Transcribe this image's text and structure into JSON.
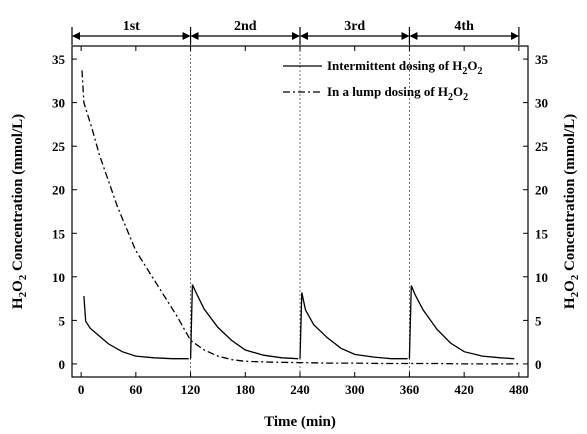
{
  "chart_data": {
    "type": "line",
    "xlabel": "Time (min)",
    "ylabel": {
      "main": "H",
      "sub1": "2",
      "mid": "O",
      "sub2": "2",
      "rest": "  Concentration (mmol/L)"
    },
    "xlim": [
      -10,
      490
    ],
    "ylim": [
      -1.5,
      36.5
    ],
    "xticks": [
      0,
      60,
      120,
      180,
      240,
      300,
      360,
      420,
      480
    ],
    "yticks": [
      0,
      5,
      10,
      15,
      20,
      25,
      30,
      35
    ],
    "stage_boundaries": [
      120,
      240,
      360
    ],
    "stages": [
      {
        "label": "1st",
        "start": -10,
        "end": 120
      },
      {
        "label": "2nd",
        "start": 120,
        "end": 240
      },
      {
        "label": "3rd",
        "start": 240,
        "end": 360
      },
      {
        "label": "4th",
        "start": 360,
        "end": 480
      }
    ],
    "legend_position": "top-right",
    "series": [
      {
        "name": {
          "pre": "Intermittent dosing of H",
          "s1": "2",
          "mid": "O",
          "s2": "2"
        },
        "style": "solid",
        "segments": [
          {
            "x": [
              3,
              5,
              10,
              20,
              30,
              45,
              60,
              80,
              100,
              118
            ],
            "y": [
              7.8,
              4.9,
              4.1,
              3.2,
              2.3,
              1.4,
              0.9,
              0.7,
              0.6,
              0.6
            ]
          },
          {
            "x": [
              120,
              122,
              126,
              135,
              150,
              165,
              180,
              200,
              220,
              238
            ],
            "y": [
              0.6,
              9.1,
              8.2,
              6.3,
              4.2,
              2.7,
              1.6,
              1.0,
              0.7,
              0.6
            ]
          },
          {
            "x": [
              240,
              242,
              246,
              255,
              270,
              285,
              300,
              320,
              340,
              358
            ],
            "y": [
              0.6,
              8.2,
              6.2,
              4.5,
              3.0,
              1.8,
              1.1,
              0.8,
              0.6,
              0.6
            ]
          },
          {
            "x": [
              360,
              362,
              366,
              375,
              390,
              405,
              420,
              440,
              460,
              475
            ],
            "y": [
              0.6,
              9.0,
              8.0,
              6.2,
              4.0,
              2.4,
              1.4,
              0.9,
              0.7,
              0.6
            ]
          }
        ]
      },
      {
        "name": {
          "pre": "In a lump dosing of  H",
          "s1": "2",
          "mid": "O",
          "s2": "2"
        },
        "style": "dashdot",
        "segments": [
          {
            "x": [
              1,
              3,
              6,
              12,
              20,
              30,
              40,
              50,
              60,
              75,
              90,
              105,
              120,
              135,
              150,
              165,
              180,
              210,
              240,
              270,
              300,
              330,
              360,
              390,
              420,
              450,
              480
            ],
            "y": [
              33.7,
              30.0,
              29.0,
              27.0,
              24.0,
              21.0,
              18.0,
              15.5,
              13.0,
              10.5,
              8.0,
              5.5,
              2.7,
              1.6,
              0.9,
              0.5,
              0.3,
              0.2,
              0.15,
              0.1,
              0.1,
              0.05,
              0.05,
              0.05,
              0.0,
              0.0,
              0.0
            ]
          }
        ]
      }
    ]
  }
}
